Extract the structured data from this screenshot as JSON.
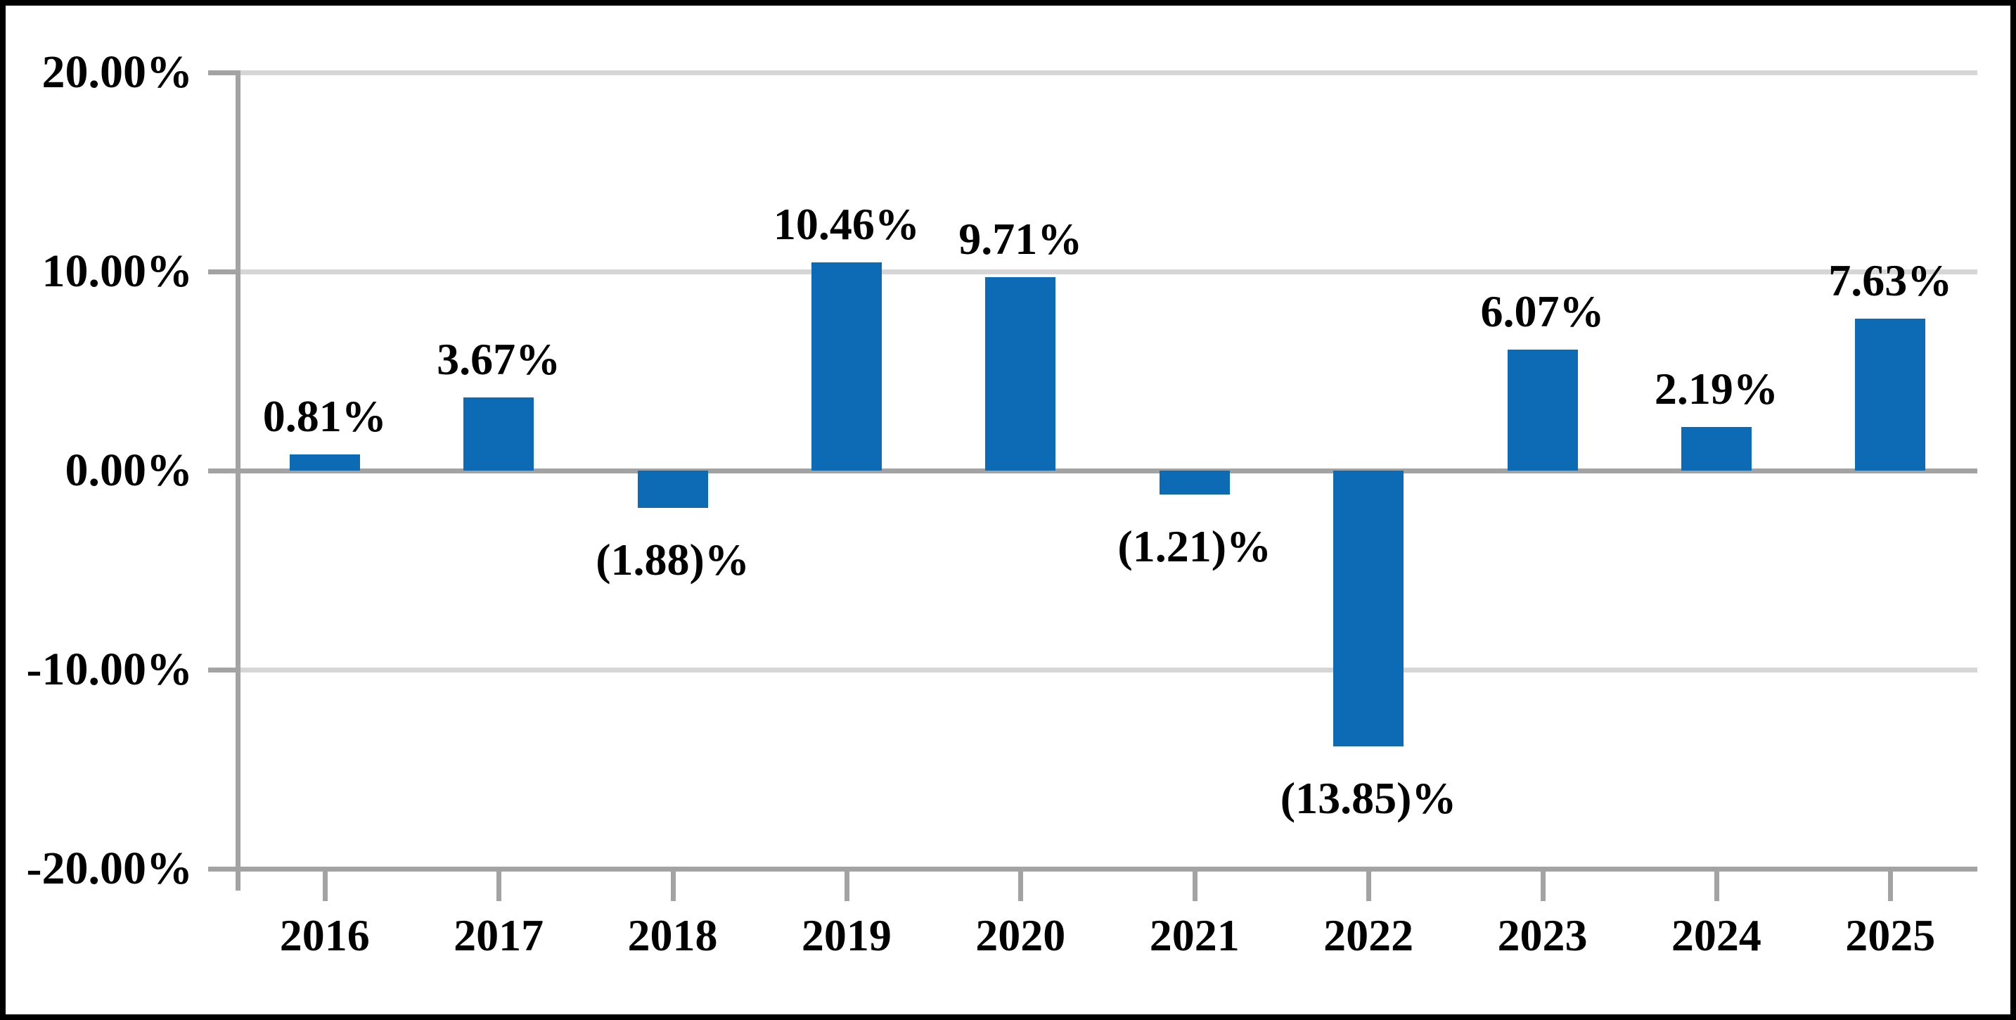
{
  "chart_data": {
    "type": "bar",
    "title": "",
    "xlabel": "",
    "ylabel": "",
    "categories": [
      "2016",
      "2017",
      "2018",
      "2019",
      "2020",
      "2021",
      "2022",
      "2023",
      "2024",
      "2025"
    ],
    "values": [
      0.81,
      3.67,
      -1.88,
      10.46,
      9.71,
      -1.21,
      -13.85,
      6.07,
      2.19,
      7.63
    ],
    "bar_labels": [
      "0.81%",
      "3.67%",
      "(1.88)%",
      "10.46%",
      "9.71%",
      "(1.21)%",
      "(13.85)%",
      "6.07%",
      "2.19%",
      "7.63%"
    ],
    "y_axis": {
      "min": -20,
      "max": 20,
      "step": 10,
      "ticks": [
        {
          "label": "20.00%",
          "value": 20
        },
        {
          "label": "10.00%",
          "value": 10
        },
        {
          "label": "0.00%",
          "value": 0
        },
        {
          "label": "-10.00%",
          "value": -10
        },
        {
          "label": "-20.00%",
          "value": -20
        }
      ]
    },
    "grid": true,
    "legend": false,
    "colors": {
      "bar": "#0D6AB4",
      "grid_light": "#D6D6D6",
      "axis": "#A3A3A3",
      "text": "#000000",
      "frame": "#000000",
      "background": "#FFFFFF"
    }
  }
}
